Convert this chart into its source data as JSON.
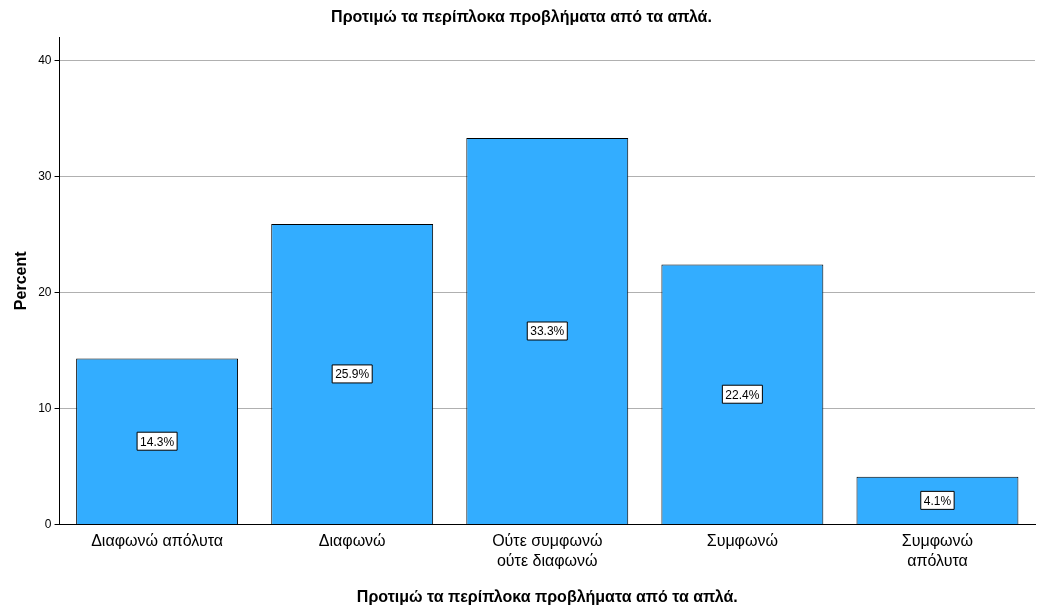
{
  "chart_data": {
    "type": "bar",
    "title": "Προτιμώ τα περίπλοκα προβλήματα από τα απλά.",
    "xlabel": "Προτιμώ τα περίπλοκα προβλήματα από τα απλά.",
    "ylabel": "Percent",
    "categories": [
      "Διαφωνώ απόλυτα",
      "Διαφωνώ",
      "Ούτε συμφωνώ\nούτε διαφωνώ",
      "Συμφωνώ",
      "Συμφωνώ\nαπόλυτα"
    ],
    "values": [
      14.3,
      25.9,
      33.3,
      22.4,
      4.1
    ],
    "value_labels": [
      "14.3%",
      "25.9%",
      "33.3%",
      "22.4%",
      "4.1%"
    ],
    "color": "#33adff",
    "ylim": [
      0,
      42
    ],
    "yticks": [
      0,
      10,
      20,
      30,
      40
    ],
    "grid": "y",
    "legend": false
  }
}
